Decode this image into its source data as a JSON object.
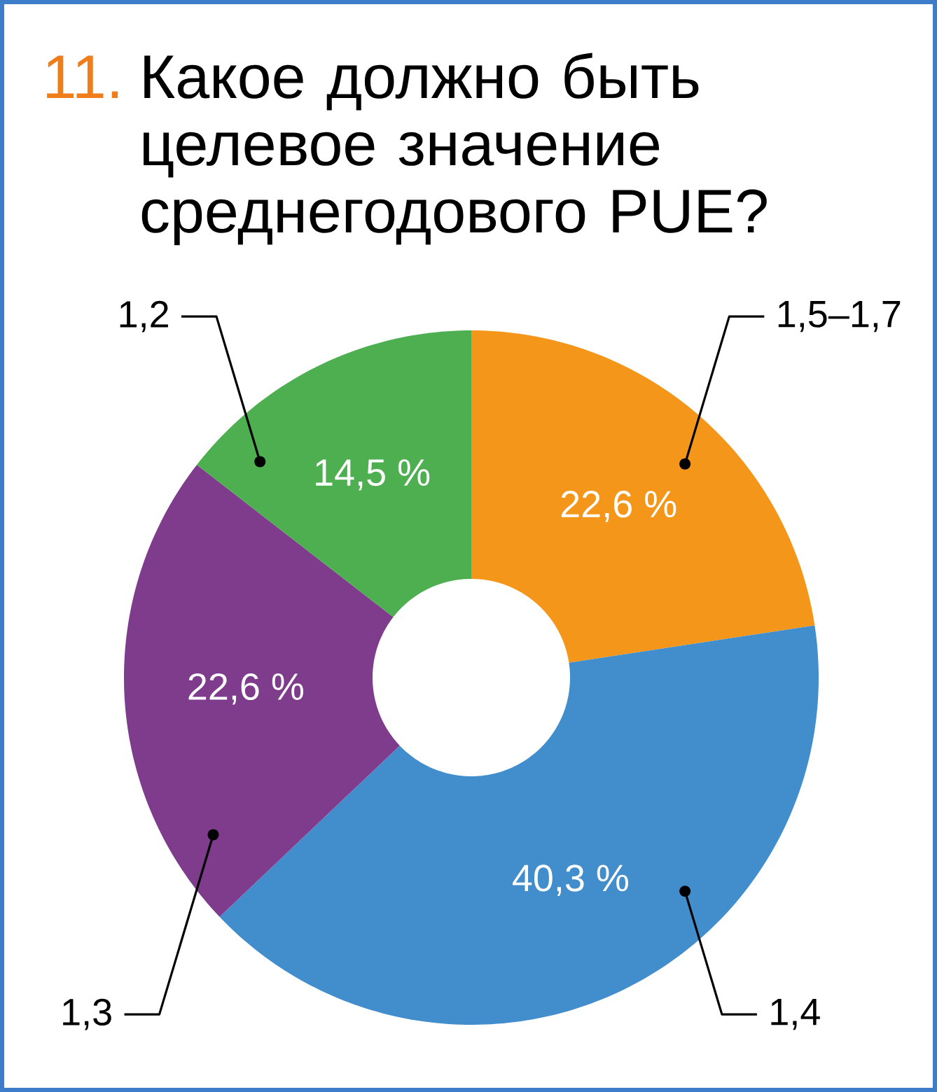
{
  "chart_data": {
    "type": "donut",
    "title": "Какое должно быть целевое значение среднегодового PUE?",
    "annotations": [
      "11."
    ],
    "categories": [
      "1,5–1,7",
      "1,4",
      "1,3",
      "1,2"
    ],
    "values": [
      22.6,
      40.3,
      22.6,
      14.5
    ],
    "colors": [
      "#f39619",
      "#428dcc",
      "#7f3c8d",
      "#4daf50"
    ],
    "value_labels": [
      "22,6 %",
      "40,3 %",
      "22,6 %",
      "14,5 %"
    ]
  }
}
